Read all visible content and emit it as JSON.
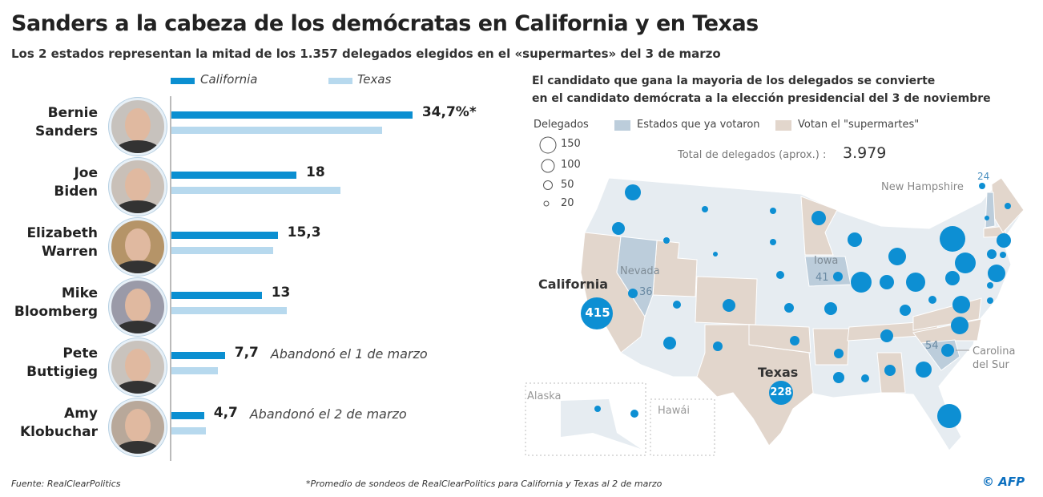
{
  "title": "Sanders a la cabeza de los demócratas en California y en Texas",
  "subtitle": "Los 2 estados representan la mitad de los 1.357 delegados elegidos en el «supermartes» del 3 de marzo",
  "colors": {
    "california": "#0b8fd1",
    "texas": "#b7d9ee",
    "voted": "#bccddb",
    "supertuesday": "#e2d6cc",
    "other_states": "#e6ecf1",
    "bubble": "#0d8fd3"
  },
  "chart_data": {
    "type": "bar",
    "orientation": "horizontal",
    "unit": "%",
    "categories": [
      "Bernie Sanders",
      "Joe Biden",
      "Elizabeth Warren",
      "Mike Bloomberg",
      "Pete Buttigieg",
      "Amy Klobuchar"
    ],
    "series": [
      {
        "name": "California",
        "values": [
          34.7,
          18,
          15.3,
          13,
          7.7,
          4.7
        ]
      },
      {
        "name": "Texas",
        "values": [
          30.3,
          24.3,
          14.6,
          16.6,
          6.7,
          5.0
        ]
      }
    ],
    "data_labels": [
      "34,7%*",
      "18",
      "15,3",
      "13",
      "7,7",
      "4,7"
    ],
    "name_lines": [
      [
        "Bernie",
        "Sanders"
      ],
      [
        "Joe",
        "Biden"
      ],
      [
        "Elizabeth",
        "Warren"
      ],
      [
        "Mike",
        "Bloomberg"
      ],
      [
        "Pete",
        "Buttigieg"
      ],
      [
        "Amy",
        "Klobuchar"
      ]
    ],
    "annotations": [
      "",
      "",
      "",
      "",
      "Abandonó el 1 de marzo",
      "Abandonó el 2 de marzo"
    ],
    "legend": [
      "California",
      "Texas"
    ],
    "legend_position": "top",
    "xlim": [
      0,
      35
    ],
    "grid": false
  },
  "map": {
    "heading_line1": "El candidato que gana la mayoria de los delegados se convierte",
    "heading_line2": "en el candidato demócrata a la elección presidencial del 3 de noviembre",
    "legend_title": "Delegados",
    "legend_sizes": [
      "150",
      "100",
      "50",
      "20"
    ],
    "legend_voted": "Estados que ya votaron",
    "legend_supertuesday": "Votan el \"supermartes\"",
    "total_label": "Total de delegados (aprox.) :",
    "total_value": "3.979",
    "states": {
      "california": {
        "name": "California",
        "delegates": "415"
      },
      "texas": {
        "name": "Texas",
        "delegates": "228"
      },
      "nevada": {
        "name": "Nevada",
        "delegates": "36"
      },
      "iowa": {
        "name": "Iowa",
        "delegates": "41"
      },
      "south_carolina": {
        "name_line1": "Carolina",
        "name_line2": "del Sur",
        "delegates": "54"
      },
      "new_hampshire": {
        "name": "New Hampshire",
        "delegates": "24"
      },
      "alaska": {
        "name": "Alaska"
      },
      "hawaii": {
        "name": "Hawái"
      }
    }
  },
  "footer": {
    "source": "Fuente: RealClearPolitics",
    "footnote": "*Promedio de sondeos de RealClearPolitics para California y Texas al 2 de marzo",
    "credit": "© AFP"
  }
}
